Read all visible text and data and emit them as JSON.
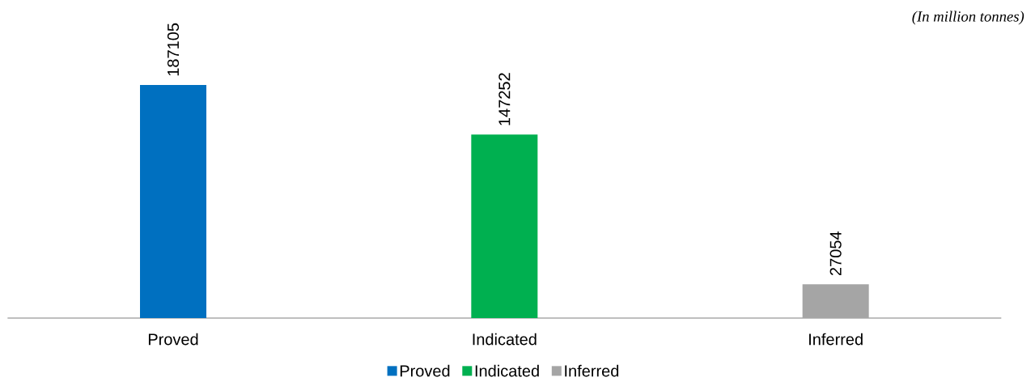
{
  "chart_data": {
    "type": "bar",
    "categories": [
      "Proved",
      "Indicated",
      "Inferred"
    ],
    "series": [
      {
        "name": "Proved",
        "color": "#0070c0",
        "values": [
          187105,
          null,
          null
        ]
      },
      {
        "name": "Indicated",
        "color": "#00b050",
        "values": [
          null,
          147252,
          null
        ]
      },
      {
        "name": "Inferred",
        "color": "#a5a5a5",
        "values": [
          null,
          null,
          27054
        ]
      }
    ],
    "data_labels": true,
    "legend": "bottom",
    "annotations": [
      "*(In million tonnes)*"
    ]
  }
}
